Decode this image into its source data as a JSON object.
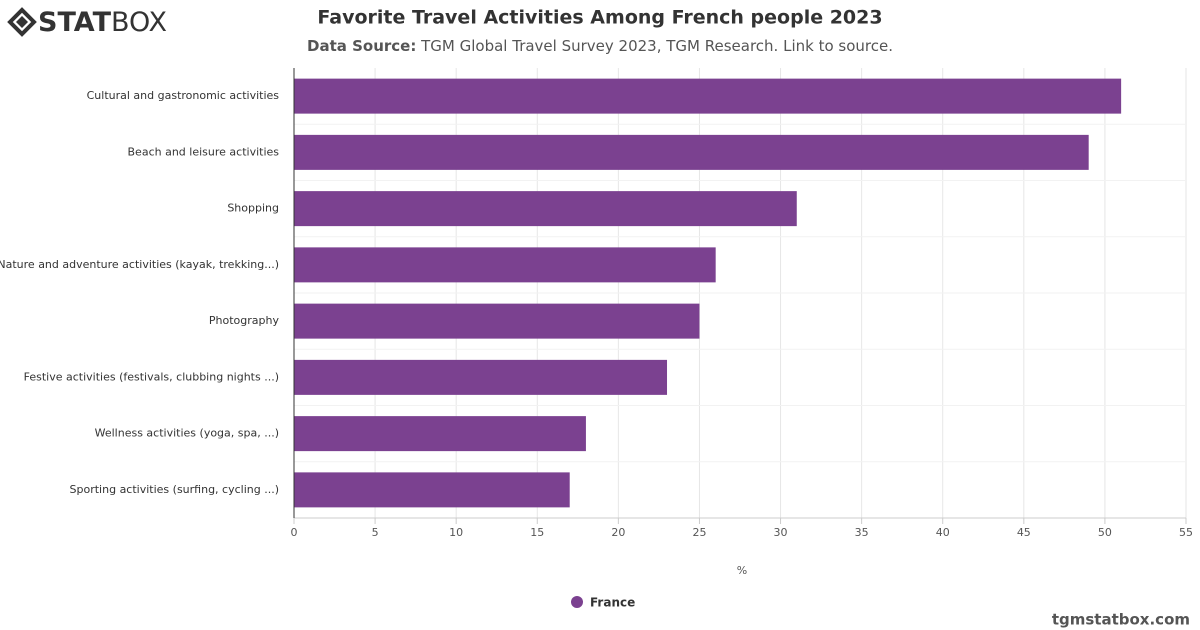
{
  "logo": {
    "bold": "STAT",
    "light": "BOX"
  },
  "footer": "tgmstatbox.com",
  "chart_data": {
    "type": "hbar",
    "title": "Favorite Travel Activities Among French people 2023",
    "subtitle_label": "Data Source:",
    "subtitle": "TGM Global Travel Survey 2023, TGM Research. Link to source.",
    "x_label": "%",
    "categories": [
      "Cultural and gastronomic activities",
      "Beach and leisure activities",
      "Shopping",
      "Nature and adventure activities (kayak, trekking...)",
      "Photography",
      "Festive activities (festivals, clubbing nights ...)",
      "Wellness activities (yoga, spa, ...)",
      "Sporting activities (surfing, cycling ...)"
    ],
    "series": [
      {
        "name": "France",
        "color": "#7b4190",
        "values": [
          51,
          49,
          31,
          26,
          25,
          23,
          18,
          17
        ]
      }
    ],
    "xlim": [
      0,
      55
    ],
    "xticks": [
      0,
      5,
      10,
      15,
      20,
      25,
      30,
      35,
      40,
      45,
      50,
      55
    ],
    "grid": true,
    "legend": "bottom"
  }
}
